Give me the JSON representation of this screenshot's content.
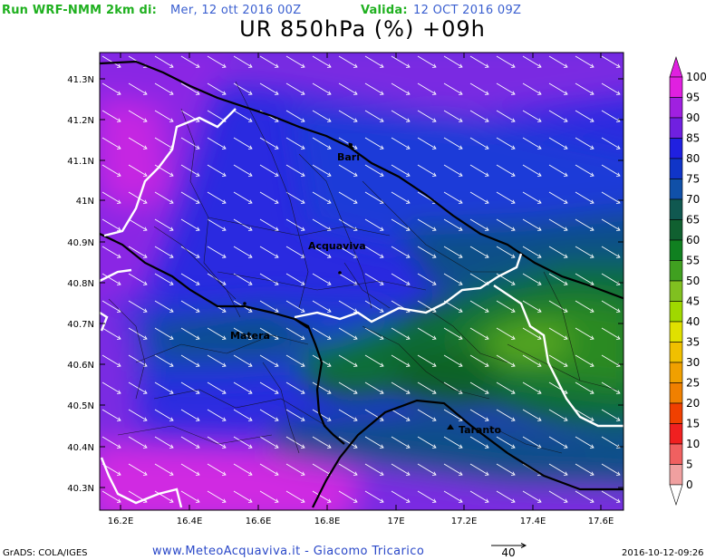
{
  "header": {
    "run_label": "Run WRF-NMM 2km di:",
    "run_date": "Mer, 12 ott 2016 00Z",
    "valid_label": "Valida:",
    "valid_date": "12 OCT 2016 09Z"
  },
  "title": "UR 850hPa (%) +09h",
  "map": {
    "lat_labels": [
      "41.3N",
      "41.2N",
      "41.1N",
      "41N",
      "40.9N",
      "40.8N",
      "40.7N",
      "40.6N",
      "40.5N",
      "40.4N",
      "40.3N"
    ],
    "lon_labels": [
      "16.2E",
      "16.4E",
      "16.6E",
      "16.8E",
      "17E",
      "17.2E",
      "17.4E",
      "17.6E"
    ],
    "cities": [
      {
        "name": "Bari"
      },
      {
        "name": "Acquaviva"
      },
      {
        "name": "Matera"
      },
      {
        "name": "Taranto"
      }
    ],
    "wind_vector_reference": "40"
  },
  "colorbar": {
    "labels": [
      "100",
      "95",
      "90",
      "85",
      "80",
      "75",
      "70",
      "65",
      "60",
      "55",
      "50",
      "45",
      "40",
      "35",
      "30",
      "25",
      "20",
      "15",
      "10",
      "5",
      "0"
    ],
    "colors": [
      "#e020e0",
      "#a020e0",
      "#7020e0",
      "#2020e0",
      "#1035c8",
      "#1050a8",
      "#105850",
      "#106030",
      "#108020",
      "#40a020",
      "#80c020",
      "#a0d800",
      "#e0e000",
      "#f0c000",
      "#f0a000",
      "#f08000",
      "#f04000",
      "#f02020",
      "#f06060",
      "#f0a0a0"
    ]
  },
  "footer": {
    "software": "GrADS: COLA/IGES",
    "credit": "www.MeteoAcquaviva.it - Giacomo Tricarico",
    "timestamp": "2016-10-12-09:26"
  }
}
